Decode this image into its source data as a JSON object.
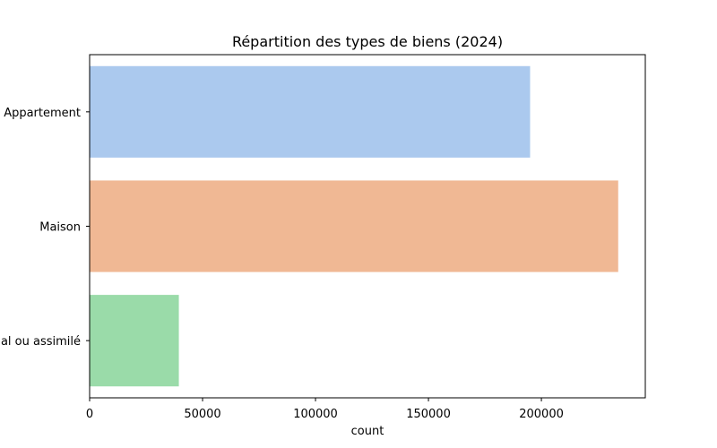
{
  "chart_data": {
    "type": "bar",
    "orientation": "horizontal",
    "title": "Répartition des types de biens (2024)",
    "xlabel": "count",
    "ylabel": "",
    "categories": [
      "Appartement",
      "Maison",
      "Local industriel. commercial ou assimilé"
    ],
    "values": [
      195000,
      234000,
      39500
    ],
    "colors": [
      "#abc9ee",
      "#f0b894",
      "#9adba9"
    ],
    "xlim": [
      0,
      246000
    ],
    "xticks": [
      0,
      50000,
      100000,
      150000,
      200000
    ],
    "xtick_labels": [
      "0",
      "50000",
      "100000",
      "150000",
      "200000"
    ],
    "grid": false,
    "legend": "none"
  }
}
